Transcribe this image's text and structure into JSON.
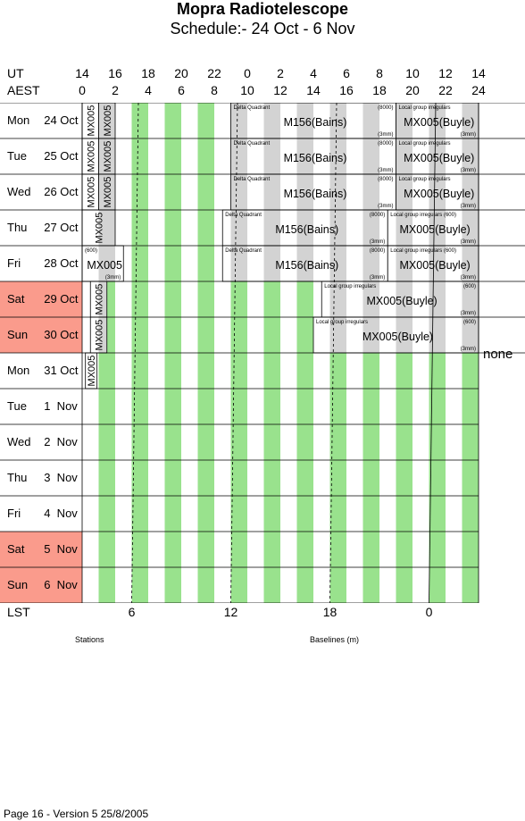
{
  "title": "Mopra Radiotelescope",
  "subtitle": "Schedule:- 24 Oct - 6  Nov",
  "ut_label": "UT",
  "aest_label": "AEST",
  "ut_ticks": [
    "14",
    "16",
    "18",
    "20",
    "22",
    "0",
    "2",
    "4",
    "6",
    "8",
    "10",
    "12",
    "14"
  ],
  "aest_ticks": [
    "0",
    "2",
    "4",
    "6",
    "8",
    "10",
    "12",
    "14",
    "16",
    "18",
    "20",
    "22",
    "24"
  ],
  "lst_label": "LST",
  "lst_ticks": [
    "6",
    "12",
    "18",
    "0"
  ],
  "stations_label": "Stations",
  "baselines_label": "Baselines (m)",
  "none_label": "none",
  "footer": "Page 16 - Version 5  25/8/2005",
  "colors": {
    "green": "#99e28d",
    "grey": "#d3d3d3",
    "weekend": "#fa9b8c"
  },
  "days": [
    {
      "dow": "Mon",
      "date": "24 Oct",
      "weekend": false
    },
    {
      "dow": "Tue",
      "date": "25 Oct",
      "weekend": false
    },
    {
      "dow": "Wed",
      "date": "26 Oct",
      "weekend": false
    },
    {
      "dow": "Thu",
      "date": "27 Oct",
      "weekend": false
    },
    {
      "dow": "Fri",
      "date": "28 Oct",
      "weekend": false
    },
    {
      "dow": "Sat",
      "date": "29 Oct",
      "weekend": true
    },
    {
      "dow": "Sun",
      "date": "30 Oct",
      "weekend": true
    },
    {
      "dow": "Mon",
      "date": "31 Oct",
      "weekend": false
    },
    {
      "dow": "Tue",
      "date": "1  Nov",
      "weekend": false
    },
    {
      "dow": "Wed",
      "date": "2  Nov",
      "weekend": false
    },
    {
      "dow": "Thu",
      "date": "3  Nov",
      "weekend": false
    },
    {
      "dow": "Fri",
      "date": "4  Nov",
      "weekend": false
    },
    {
      "dow": "Sat",
      "date": "5  Nov",
      "weekend": true
    },
    {
      "dow": "Sun",
      "date": "6  Nov",
      "weekend": true
    }
  ],
  "blocks": [
    {
      "row": 0,
      "start_aest": 0,
      "end_aest": 1,
      "label": "MX005",
      "vertical": true
    },
    {
      "row": 0,
      "start_aest": 1,
      "end_aest": 2,
      "label": "MX005",
      "vertical": true
    },
    {
      "row": 0,
      "start_aest": 9,
      "end_aest": 19,
      "label": "M156(Bains)",
      "tl": "Delta Quadrant",
      "tr": "(8000)",
      "br": "(3mm)"
    },
    {
      "row": 0,
      "start_aest": 19,
      "end_aest": 24,
      "label": "MX005(Buyle)",
      "tl": "Local group irregulars",
      "br": "(3mm)"
    },
    {
      "row": 1,
      "start_aest": 0,
      "end_aest": 1,
      "label": "MX005",
      "vertical": true
    },
    {
      "row": 1,
      "start_aest": 1,
      "end_aest": 2,
      "label": "MX005",
      "vertical": true
    },
    {
      "row": 1,
      "start_aest": 9,
      "end_aest": 19,
      "label": "M156(Bains)",
      "tl": "Delta Quadrant",
      "tr": "(8000)",
      "br": "(3mm)"
    },
    {
      "row": 1,
      "start_aest": 19,
      "end_aest": 24,
      "label": "MX005(Buyle)",
      "tl": "Local group irregulars",
      "br": "(3mm)"
    },
    {
      "row": 2,
      "start_aest": 0,
      "end_aest": 1,
      "label": "MX005",
      "vertical": true
    },
    {
      "row": 2,
      "start_aest": 1,
      "end_aest": 2,
      "label": "MX005",
      "vertical": true
    },
    {
      "row": 2,
      "start_aest": 9,
      "end_aest": 19,
      "label": "M156(Bains)",
      "tl": "Delta Quadrant",
      "tr": "(8000)",
      "br": "(3mm)"
    },
    {
      "row": 2,
      "start_aest": 19,
      "end_aest": 24,
      "label": "MX005(Buyle)",
      "tl": "Local group irregulars",
      "br": "(3mm)"
    },
    {
      "row": 3,
      "start_aest": 0,
      "end_aest": 2,
      "label": "MX005",
      "vertical": true
    },
    {
      "row": 3,
      "start_aest": 8.5,
      "end_aest": 18.5,
      "label": "M156(Bains)",
      "tl": "Delta Quadrant",
      "tr": "(8000)",
      "br": "(3mm)"
    },
    {
      "row": 3,
      "start_aest": 18.5,
      "end_aest": 24,
      "label": "MX005(Buyle)",
      "tl": "Local group irregulars (600)",
      "br": "(3mm)"
    },
    {
      "row": 4,
      "start_aest": 0,
      "end_aest": 2.5,
      "label": "MX005",
      "tl": "(600)",
      "br": "(3mm)"
    },
    {
      "row": 4,
      "start_aest": 8.5,
      "end_aest": 18.5,
      "label": "M156(Bains)",
      "tl": "Delta Quadrant",
      "tr": "(8000)",
      "br": "(3mm)"
    },
    {
      "row": 4,
      "start_aest": 18.5,
      "end_aest": 24,
      "label": "MX005(Buyle)",
      "tl": "Local group irregulars (600)",
      "br": "(3mm)"
    },
    {
      "row": 5,
      "start_aest": 0.5,
      "end_aest": 1.5,
      "label": "MX005",
      "vertical": true
    },
    {
      "row": 5,
      "start_aest": 14.5,
      "end_aest": 24,
      "label": "MX005(Buyle)",
      "tl": "Local group irregulars",
      "tr": "(600)",
      "br": "(3mm)"
    },
    {
      "row": 6,
      "start_aest": 0.5,
      "end_aest": 1.5,
      "label": "MX005",
      "vertical": true
    },
    {
      "row": 6,
      "start_aest": 14,
      "end_aest": 24,
      "label": "MX005(Buyle)",
      "tl": "Local group irregulars",
      "tr": "(600)",
      "br": "(3mm)"
    },
    {
      "row": 7,
      "start_aest": 0.2,
      "end_aest": 0.9,
      "label": "MX005",
      "vertical": true
    }
  ]
}
